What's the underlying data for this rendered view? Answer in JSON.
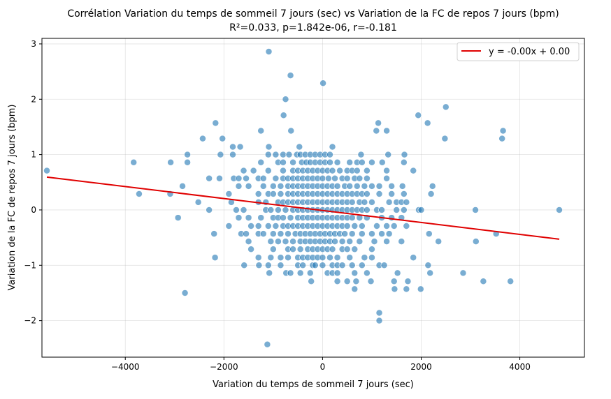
{
  "chart_data": {
    "type": "scatter",
    "title": "Corrélation Variation du temps de sommeil 7 jours (sec) vs Variation de la FC de repos 7 jours (bpm)",
    "subtitle": "R²=0.033, p=1.842e-06, r=-0.181",
    "xlabel": "Variation du temps de sommeil 7 jours (sec)",
    "ylabel": "Variation de la FC de repos 7 jours (bpm)",
    "xlim": [
      -5690,
      5310
    ],
    "ylim": [
      -2.66,
      3.1
    ],
    "xticks": [
      -4000,
      -2000,
      0,
      2000,
      4000
    ],
    "xtick_labels": [
      "−4000",
      "−2000",
      "0",
      "2000",
      "4000"
    ],
    "yticks": [
      -2,
      -1,
      0,
      1,
      2,
      3
    ],
    "ytick_labels": [
      "−2",
      "−1",
      "0",
      "1",
      "2",
      "3"
    ],
    "grid": true,
    "legend": {
      "position": "top-right",
      "entries": [
        "y = -0.00x + 0.00"
      ]
    },
    "colors": {
      "points": "#1f77b4",
      "regression": "#e00000"
    },
    "regression": {
      "slope": -0.000108,
      "intercept": -0.01,
      "x_range": [
        -5590,
        4800
      ]
    },
    "levels": [
      {
        "y": 1.0,
        "x": [
          -1100,
          -950,
          -800,
          -680,
          -520,
          -450,
          -350,
          -250,
          -150,
          -50,
          50,
          150,
          780,
          1330,
          1660,
          -1820,
          -2070,
          -2740
        ]
      },
      {
        "y": 0.86,
        "x": [
          -1250,
          -900,
          -800,
          -600,
          -420,
          -330,
          -250,
          -150,
          -50,
          50,
          150,
          300,
          550,
          700,
          800,
          1000,
          1210,
          1650,
          -3830,
          -3080,
          -2740
        ]
      },
      {
        "y": 0.71,
        "x": [
          -1600,
          -1400,
          -1100,
          -800,
          -600,
          -500,
          -400,
          -300,
          -200,
          -100,
          0,
          100,
          200,
          350,
          500,
          600,
          700,
          900,
          1300,
          1840,
          -5590
        ]
      },
      {
        "y": 0.57,
        "x": [
          -1800,
          -1700,
          -1550,
          -1300,
          -1200,
          -950,
          -800,
          -700,
          -600,
          -500,
          -400,
          -300,
          -200,
          -100,
          0,
          120,
          250,
          400,
          500,
          650,
          750,
          900,
          1300,
          -2300,
          -2090
        ]
      },
      {
        "y": 0.43,
        "x": [
          -1700,
          -1500,
          -1200,
          -1000,
          -850,
          -700,
          -600,
          -500,
          -400,
          -300,
          -200,
          -100,
          0,
          100,
          200,
          300,
          450,
          550,
          700,
          850,
          1000,
          1150,
          1400,
          1620,
          2230,
          -2840
        ]
      },
      {
        "y": 0.29,
        "x": [
          -1900,
          -1300,
          -1100,
          -1000,
          -850,
          -700,
          -600,
          -500,
          -400,
          -300,
          -200,
          -100,
          0,
          100,
          200,
          300,
          400,
          500,
          600,
          700,
          800,
          900,
          1150,
          1400,
          1650,
          2200,
          -3720,
          -3090
        ]
      },
      {
        "y": 0.14,
        "x": [
          -1850,
          -1300,
          -1150,
          -900,
          -800,
          -700,
          -600,
          -500,
          -400,
          -300,
          -200,
          -100,
          0,
          100,
          200,
          300,
          400,
          500,
          600,
          750,
          850,
          1000,
          1350,
          1500,
          1600,
          1700,
          -2520
        ]
      },
      {
        "y": 0.0,
        "x": [
          -2300,
          -1750,
          -1600,
          -1150,
          -1050,
          -900,
          -750,
          -600,
          -500,
          -400,
          -300,
          -200,
          -100,
          0,
          100,
          200,
          300,
          400,
          500,
          600,
          700,
          800,
          900,
          1100,
          1200,
          1500,
          1650,
          1950,
          2000,
          3100,
          4800
        ]
      },
      {
        "y": -0.14,
        "x": [
          -1700,
          -1500,
          -1250,
          -1000,
          -900,
          -800,
          -650,
          -500,
          -400,
          -300,
          -200,
          -100,
          0,
          100,
          200,
          300,
          400,
          500,
          600,
          750,
          900,
          1200,
          1400,
          1600,
          -2930
        ]
      },
      {
        "y": -0.29,
        "x": [
          -1900,
          -1450,
          -1300,
          -1100,
          -950,
          -800,
          -700,
          -600,
          -500,
          -400,
          -300,
          -200,
          -100,
          0,
          100,
          200,
          300,
          400,
          500,
          650,
          800,
          1100,
          1300,
          1450,
          1700
        ]
      },
      {
        "y": -0.43,
        "x": [
          -1650,
          -1550,
          -1300,
          -1200,
          -1000,
          -850,
          -700,
          -550,
          -450,
          -350,
          -250,
          -150,
          -50,
          50,
          150,
          250,
          350,
          450,
          600,
          800,
          1000,
          1200,
          1350,
          2160,
          3520,
          -2200
        ]
      },
      {
        "y": -0.57,
        "x": [
          -1500,
          -1050,
          -900,
          -750,
          -600,
          -450,
          -350,
          -250,
          -150,
          -50,
          50,
          150,
          250,
          400,
          550,
          750,
          1050,
          1300,
          1600,
          2350,
          3110
        ]
      },
      {
        "y": -0.71,
        "x": [
          -1450,
          -1000,
          -700,
          -600,
          -450,
          -300,
          -200,
          -100,
          0,
          100,
          200,
          400,
          500,
          650,
          1000
        ]
      },
      {
        "y": -0.86,
        "x": [
          -1300,
          -1050,
          -850,
          -700,
          -500,
          -400,
          -300,
          -200,
          -100,
          0,
          150,
          300,
          550,
          850,
          1000,
          1840,
          -2180
        ]
      },
      {
        "y": -1.0,
        "x": [
          -1590,
          -1290,
          -1100,
          -850,
          -500,
          -400,
          -200,
          -150,
          0,
          200,
          300,
          400,
          600,
          800,
          1150,
          1250,
          2140
        ]
      },
      {
        "y": -1.14,
        "x": [
          -1080,
          -740,
          -650,
          -450,
          -250,
          100,
          200,
          300,
          650,
          900,
          1520,
          2180,
          2850
        ]
      },
      {
        "y": -1.29,
        "x": [
          -230,
          300,
          500,
          680,
          980,
          1450,
          1730,
          3260,
          3810
        ]
      },
      {
        "y": -1.43,
        "x": [
          650,
          1460,
          1700,
          1990
        ]
      }
    ],
    "extra_points": [
      [
        -1090,
        2.86
      ],
      [
        -650,
        2.43
      ],
      [
        10,
        2.29
      ],
      [
        -750,
        2.0
      ],
      [
        -790,
        1.71
      ],
      [
        1940,
        1.71
      ],
      [
        2500,
        1.86
      ],
      [
        -2170,
        1.57
      ],
      [
        1130,
        1.57
      ],
      [
        2130,
        1.57
      ],
      [
        -1250,
        1.43
      ],
      [
        -640,
        1.43
      ],
      [
        1090,
        1.43
      ],
      [
        1300,
        1.43
      ],
      [
        -2430,
        1.29
      ],
      [
        -2030,
        1.29
      ],
      [
        2480,
        1.29
      ],
      [
        3640,
        1.29
      ],
      [
        3660,
        1.43
      ],
      [
        -1820,
        1.14
      ],
      [
        -1670,
        1.14
      ],
      [
        -1090,
        1.14
      ],
      [
        -470,
        1.14
      ],
      [
        200,
        1.14
      ],
      [
        -2790,
        -1.5
      ],
      [
        1150,
        -1.86
      ],
      [
        1150,
        -2.0
      ],
      [
        -1120,
        -2.43
      ]
    ]
  }
}
